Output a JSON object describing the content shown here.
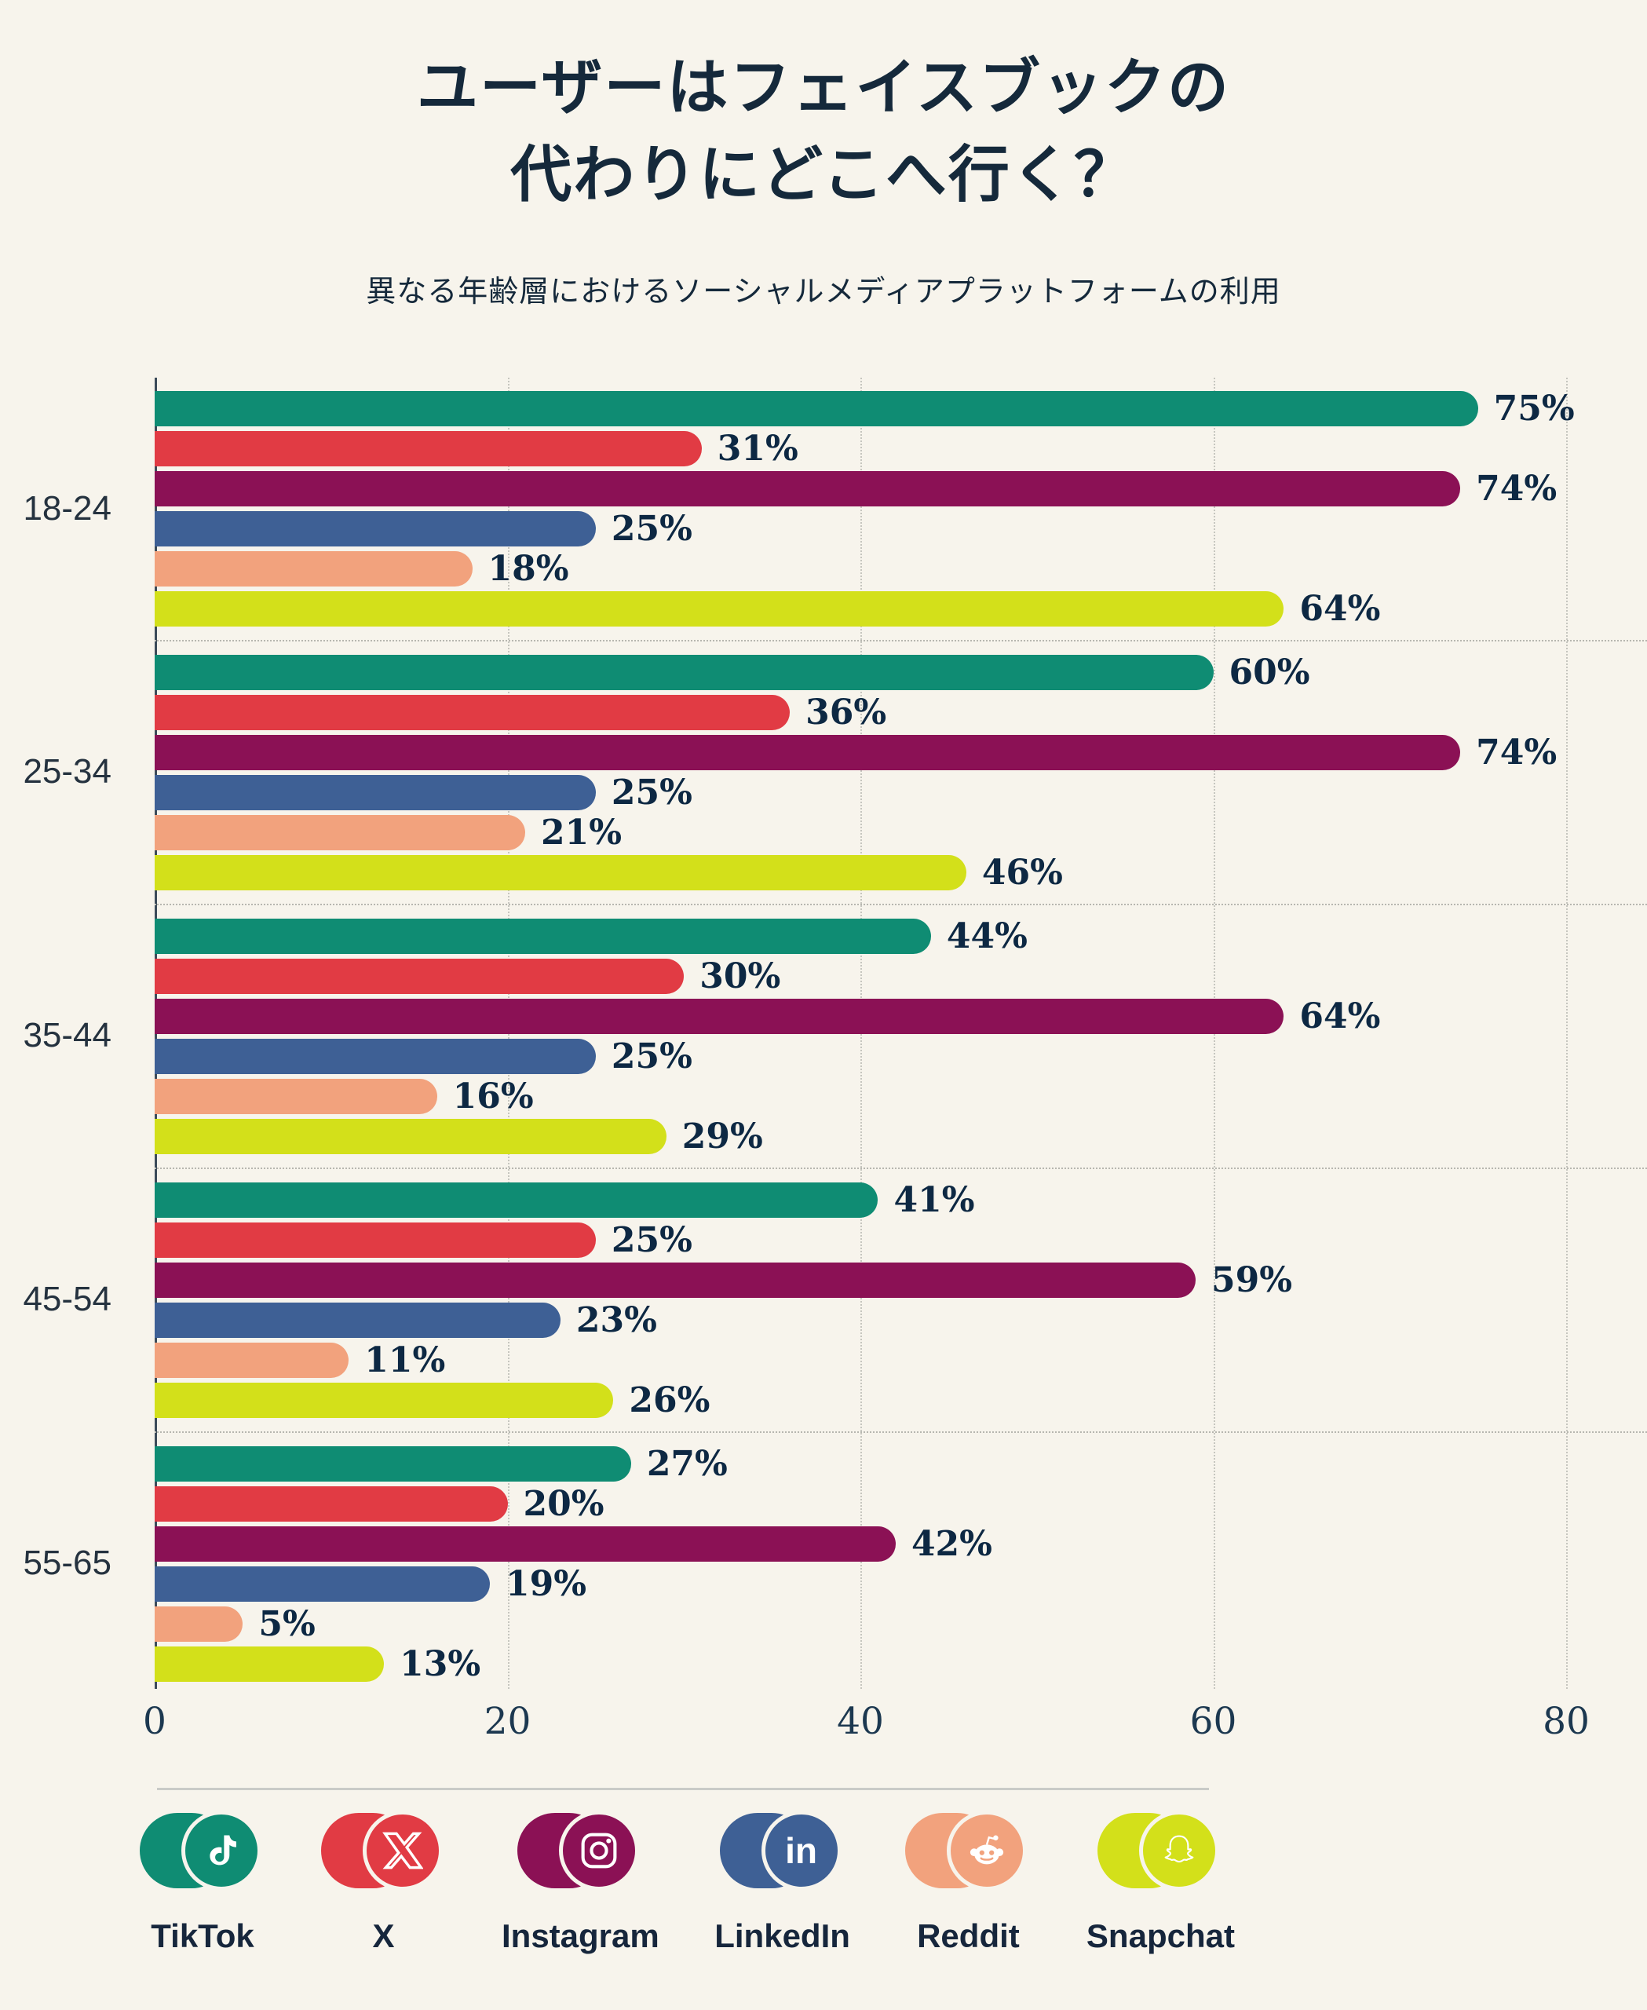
{
  "page": {
    "background": "#F7F4EC"
  },
  "header": {
    "title_line1": "ユーザーはフェイスブックの",
    "title_line2": "代わりにどこへ行く？",
    "subtitle": "異なる年齢層におけるソーシャルメディアプラットフォームの利用"
  },
  "chart_data": {
    "type": "bar",
    "orientation": "horizontal",
    "categories": [
      "18-24",
      "25-34",
      "35-44",
      "45-54",
      "55-65"
    ],
    "series": [
      {
        "name": "TikTok",
        "color": "#0F8C73",
        "values": [
          75,
          60,
          44,
          41,
          27
        ]
      },
      {
        "name": "X",
        "color": "#E13B44",
        "values": [
          31,
          36,
          30,
          25,
          20
        ]
      },
      {
        "name": "Instagram",
        "color": "#8B1155",
        "values": [
          74,
          74,
          64,
          59,
          42
        ]
      },
      {
        "name": "LinkedIn",
        "color": "#3E6095",
        "values": [
          25,
          25,
          25,
          23,
          19
        ]
      },
      {
        "name": "Reddit",
        "color": "#F2A27D",
        "values": [
          18,
          21,
          16,
          11,
          5
        ]
      },
      {
        "name": "Snapchat",
        "color": "#D3E01A",
        "values": [
          64,
          46,
          29,
          26,
          13
        ]
      }
    ],
    "value_suffix": "%",
    "xlim": [
      0,
      80
    ],
    "x_ticks": [
      0,
      20,
      40,
      60,
      80
    ],
    "grid": "vertical-dotted",
    "legend_position": "bottom"
  },
  "legend": {
    "items": [
      {
        "label": "TikTok",
        "color": "#0F8C73",
        "icon": "tiktok-icon"
      },
      {
        "label": "X",
        "color": "#E13B44",
        "icon": "x-icon"
      },
      {
        "label": "Instagram",
        "color": "#8B1155",
        "icon": "instagram-icon"
      },
      {
        "label": "LinkedIn",
        "color": "#3E6095",
        "icon": "linkedin-icon"
      },
      {
        "label": "Reddit",
        "color": "#F2A27D",
        "icon": "reddit-icon"
      },
      {
        "label": "Snapchat",
        "color": "#D3E01A",
        "icon": "snapchat-icon"
      }
    ]
  }
}
